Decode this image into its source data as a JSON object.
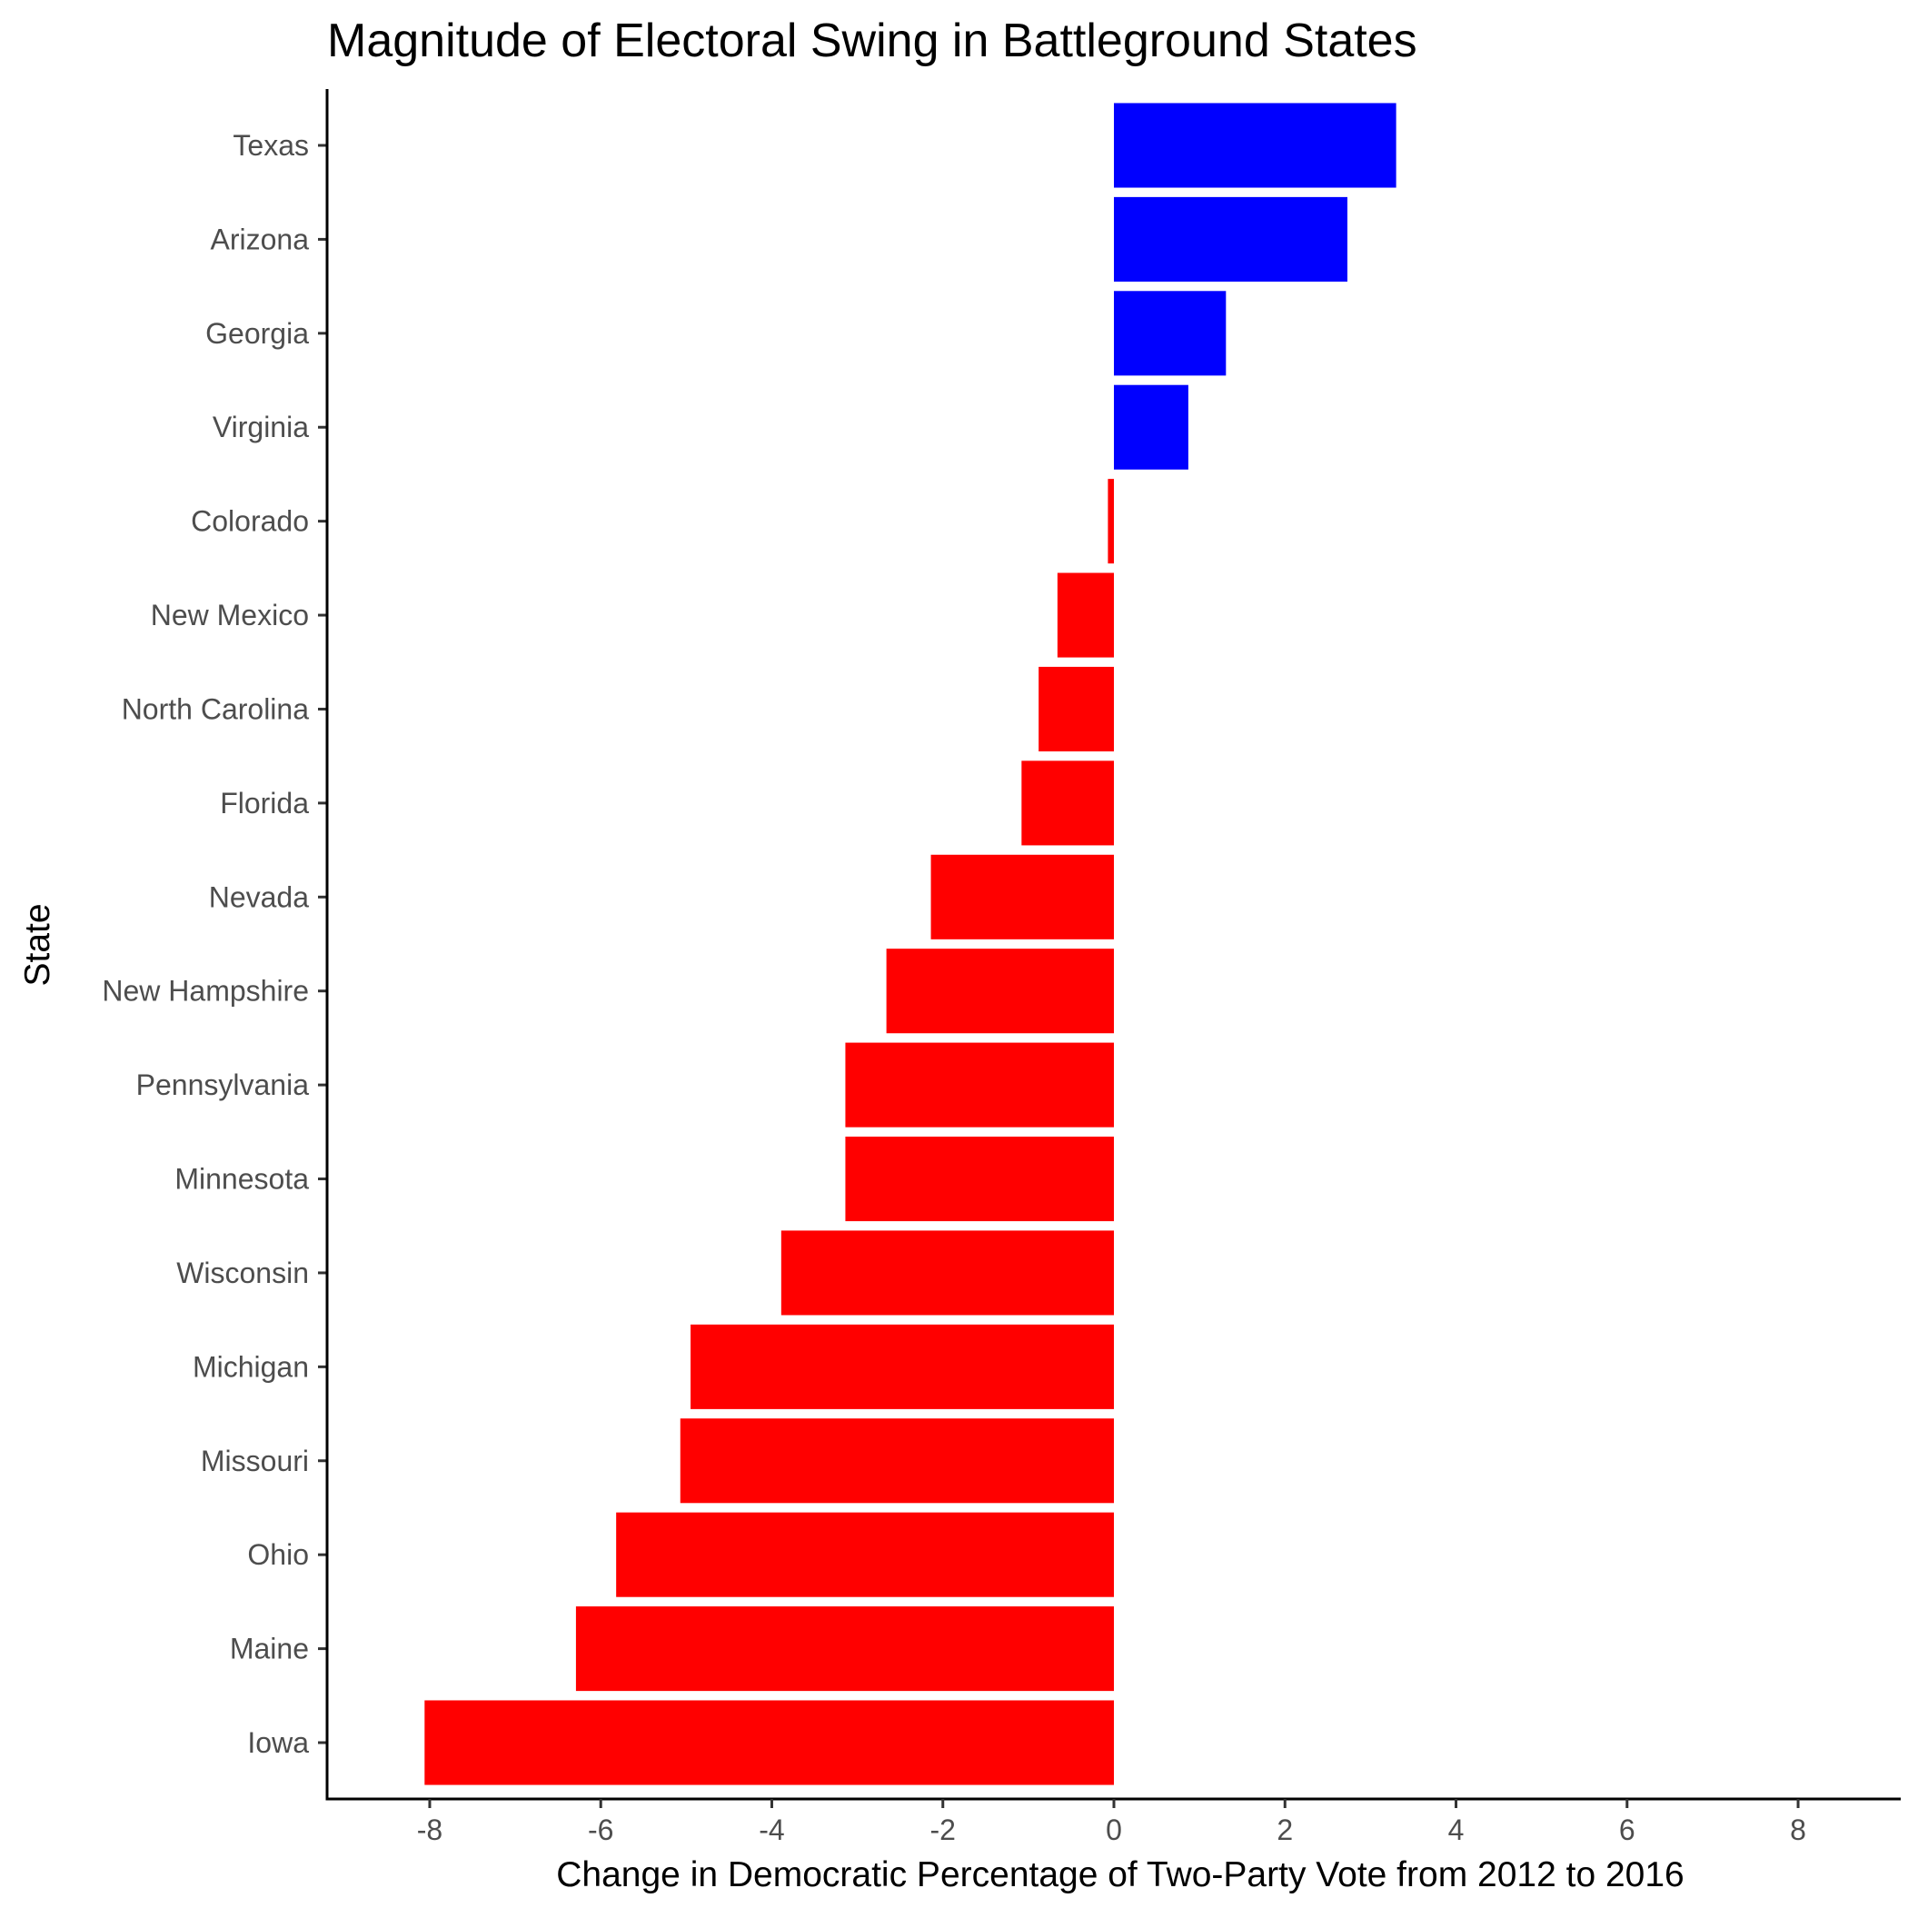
{
  "chart_data": {
    "type": "bar",
    "orientation": "horizontal",
    "title": "Magnitude of Electoral Swing in Battleground States",
    "xlabel": "Change in Democratic Percentage of Two-Party Vote from 2012 to 2016",
    "ylabel": "State",
    "xlim": [
      -9.2,
      9.2
    ],
    "xticks": [
      -8,
      -6,
      -4,
      -2,
      0,
      2,
      4,
      6,
      8
    ],
    "xtick_labels": [
      "-8",
      "-6",
      "-4",
      "-2",
      "0",
      "2",
      "4",
      "6",
      "8"
    ],
    "grid": false,
    "legend": "none",
    "colors": {
      "positive": "#0000ff",
      "negative": "#ff0000"
    },
    "categories": [
      "Texas",
      "Arizona",
      "Georgia",
      "Virginia",
      "Colorado",
      "New Mexico",
      "North Carolina",
      "Florida",
      "Nevada",
      "New Hampshire",
      "Pennsylvania",
      "Minnesota",
      "Wisconsin",
      "Michigan",
      "Missouri",
      "Ohio",
      "Maine",
      "Iowa"
    ],
    "values": [
      3.3,
      2.73,
      1.31,
      0.87,
      -0.07,
      -0.66,
      -0.88,
      -1.08,
      -2.14,
      -2.66,
      -3.14,
      -3.14,
      -3.89,
      -4.95,
      -5.07,
      -5.82,
      -6.29,
      -8.06
    ]
  }
}
